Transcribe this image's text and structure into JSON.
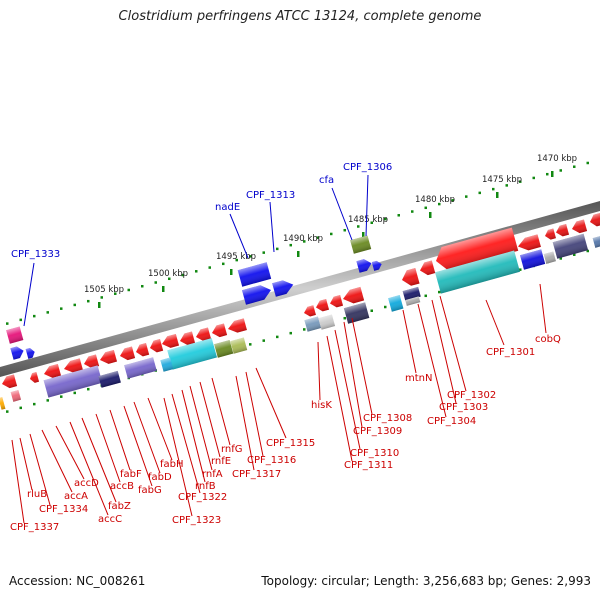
{
  "title": "Clostridium perfringens ATCC 13124, complete genome",
  "footer": {
    "accession": "Accession: NC_008261",
    "info": "Topology: circular; Length: 3,256,683 bp; Genes: 2,993"
  },
  "colors": {
    "backbone": "#777777",
    "forward_label": "#0000cc",
    "reverse_label": "#cc0000",
    "tick": "#118811",
    "feature_red": "#ee1111",
    "feature_blue": "#1111ee"
  },
  "scale_labels": [
    "1470 kbp",
    "1475 kbp",
    "1480 kbp",
    "1485 kbp",
    "1490 kbp",
    "1495 kbp",
    "1500 kbp",
    "1505 kbp"
  ],
  "forward_labels": [
    "CPF_1306",
    "cfa",
    "CPF_1313",
    "nadE",
    "CPF_1333"
  ],
  "reverse_labels": [
    "CPF_1301",
    "cobQ",
    "CPF_1302",
    "CPF_1303",
    "CPF_1304",
    "mtnN",
    "CPF_1308",
    "CPF_1309",
    "CPF_1310",
    "CPF_1311",
    "hisK",
    "CPF_1315",
    "CPF_1316",
    "CPF_1317",
    "rnfG",
    "rnfE",
    "rnfA",
    "rnfB",
    "CPF_1322",
    "CPF_1323",
    "fabH",
    "fabD",
    "fabG",
    "fabF",
    "accB",
    "fabZ",
    "accC",
    "accD",
    "accA",
    "CPF_1334",
    "rluB",
    "CPF_1337"
  ]
}
